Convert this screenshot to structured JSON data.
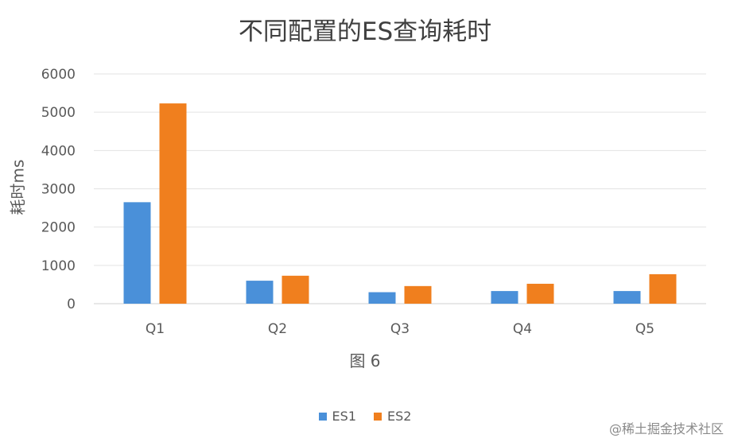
{
  "chart_data": {
    "type": "bar",
    "title": "不同配置的ES查询耗时",
    "xlabel": "图 6",
    "ylabel": "耗时ms",
    "categories": [
      "Q1",
      "Q2",
      "Q3",
      "Q4",
      "Q5"
    ],
    "ylim": [
      0,
      6000
    ],
    "yticks": [
      0,
      1000,
      2000,
      3000,
      4000,
      5000,
      6000
    ],
    "grid": true,
    "legend_position": "bottom",
    "series": [
      {
        "name": "ES1",
        "color": "#4a90d9",
        "values": [
          2650,
          600,
          300,
          330,
          330
        ]
      },
      {
        "name": "ES2",
        "color": "#f07f1e",
        "values": [
          5230,
          730,
          460,
          520,
          770
        ]
      }
    ]
  },
  "watermark": "@稀土掘金技术社区"
}
